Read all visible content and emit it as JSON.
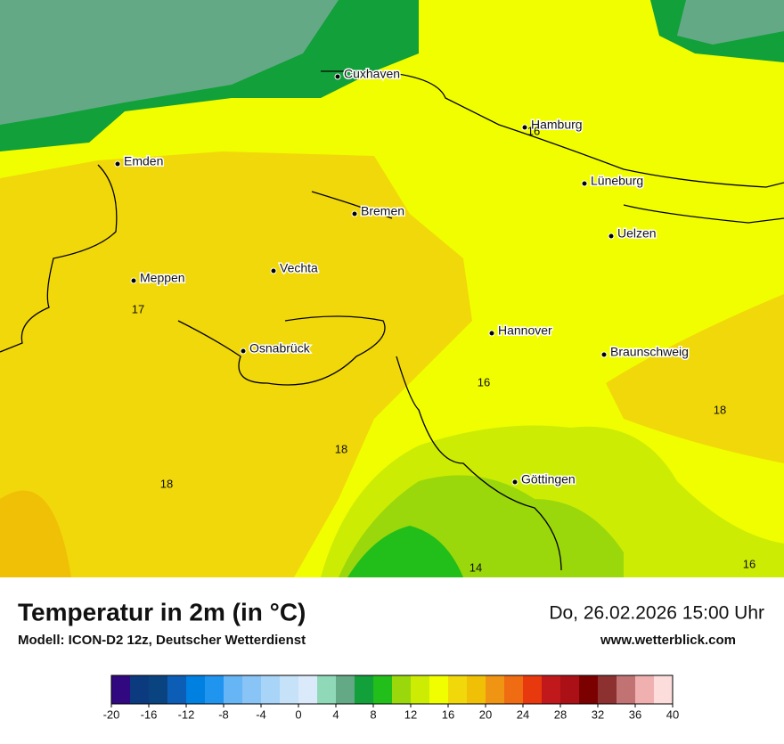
{
  "title": "Temperatur in 2m (in °C)",
  "model": "Modell: ICON-D2 12z, Deutscher Wetterdienst",
  "date": "Do, 26.02.2026 15:00 Uhr",
  "website": "www.wetterblick.com",
  "cities": [
    "Cuxhaven",
    "Hamburg",
    "Emden",
    "Lüneburg",
    "Bremen",
    "Uelzen",
    "Vechta",
    "Meppen",
    "Hannover",
    "Osnabrück",
    "Braunschweig",
    "Göttingen"
  ],
  "map_values": [
    16,
    17,
    16,
    18,
    18,
    18,
    14,
    16
  ],
  "legend": {
    "ticks": [
      -20,
      -16,
      -12,
      -8,
      -4,
      0,
      4,
      8,
      12,
      16,
      20,
      24,
      28,
      32,
      36,
      40
    ],
    "lim": [
      -20,
      40
    ],
    "colors": [
      "#31087f",
      "#0b3a7e",
      "#0a4480",
      "#0b5db5",
      "#0080e0",
      "#1f95f0",
      "#66b5f5",
      "#88c4f5",
      "#a8d4f7",
      "#c6e2f8",
      "#dbeafb",
      "#8fd9b8",
      "#64a986",
      "#11a03a",
      "#22be1a",
      "#9ad80b",
      "#ccec04",
      "#f1fe00",
      "#f1d80a",
      "#f0c007",
      "#f09513",
      "#f06c12",
      "#e8390e",
      "#c1181b",
      "#aa1016",
      "#7b0100",
      "#8c3030",
      "#c17272",
      "#f0b0b0",
      "#fddcdc"
    ]
  }
}
